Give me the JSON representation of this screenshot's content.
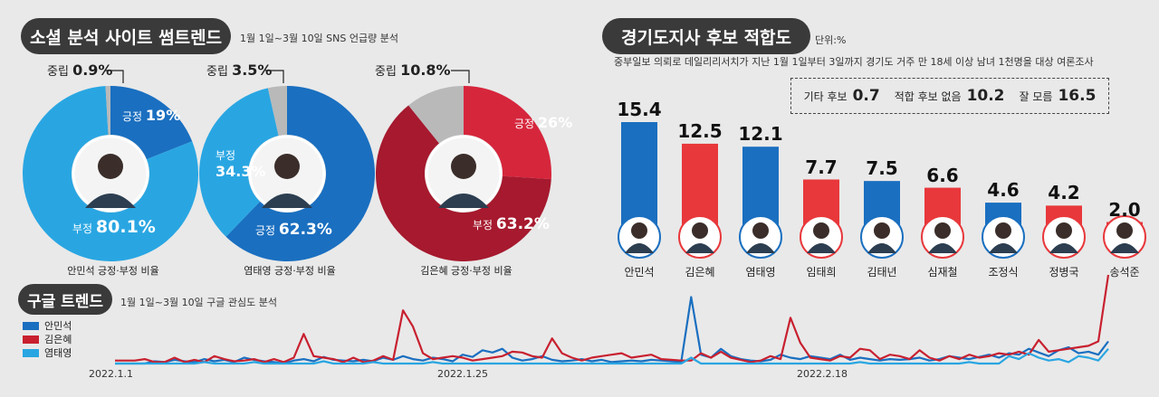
{
  "social": {
    "title": "소셜 분석 사이트 썸트렌드",
    "subtitle": "1월 1일~3월 10일 SNS 언급량 분석"
  },
  "gyeonggi": {
    "title": "경기도지사 후보 적합도",
    "unit": "단위:%",
    "source": "중부일보 의뢰로 데일리리서치가 지난 1월 1일부터 3일까지 경기도 거주 만 18세 이상 남녀 1천명을 대상 여론조사",
    "other_label": "기타 후보",
    "other_value": "0.7",
    "none_label": "적합 후보 없음",
    "none_value": "10.2",
    "dunno_label": "잘 모름",
    "dunno_value": "16.5"
  },
  "google": {
    "title": "구글 트렌드",
    "subtitle": "1월 1일~3월 10일 구글 관심도 분석"
  },
  "colors": {
    "blue": "#1a6fc0",
    "lightblue": "#29a6e2",
    "red": "#e8383b",
    "darkred": "#a6192e",
    "crimson": "#d6263c",
    "gray": "#b9b9b9"
  },
  "chart_data": [
    {
      "type": "pie",
      "title": "안민석 긍정·부정 비율",
      "slices": [
        {
          "name": "긍정",
          "value": 19,
          "label": "19%",
          "color": "#1a6fc0"
        },
        {
          "name": "부정",
          "value": 80.1,
          "label": "80.1%",
          "color": "#29a6e2"
        },
        {
          "name": "중립",
          "value": 0.9,
          "label": "0.9%",
          "color": "#b9b9b9"
        }
      ]
    },
    {
      "type": "pie",
      "title": "염태영 긍정·부정 비율",
      "slices": [
        {
          "name": "긍정",
          "value": 62.3,
          "label": "62.3%",
          "color": "#1a6fc0"
        },
        {
          "name": "부정",
          "value": 34.3,
          "label": "34.3%",
          "color": "#29a6e2"
        },
        {
          "name": "중립",
          "value": 3.5,
          "label": "3.5%",
          "color": "#b9b9b9"
        }
      ]
    },
    {
      "type": "pie",
      "title": "김은혜 긍정·부정 비율",
      "slices": [
        {
          "name": "긍정",
          "value": 26,
          "label": "26%",
          "color": "#d6263c"
        },
        {
          "name": "부정",
          "value": 63.2,
          "label": "63.2%",
          "color": "#a6192e"
        },
        {
          "name": "중립",
          "value": 10.8,
          "label": "10.8%",
          "color": "#b9b9b9"
        }
      ]
    },
    {
      "type": "bar",
      "categories": [
        "안민석",
        "김은혜",
        "염태영",
        "임태희",
        "김태년",
        "심재철",
        "조정식",
        "정병국",
        "송석준"
      ],
      "values": [
        15.4,
        12.5,
        12.1,
        7.7,
        7.5,
        6.6,
        4.6,
        4.2,
        2.0
      ],
      "labels": [
        "15.4",
        "12.5",
        "12.1",
        "7.7",
        "7.5",
        "6.6",
        "4.6",
        "4.2",
        "2.0"
      ],
      "colors": [
        "#1a6fc0",
        "#e8383b",
        "#1a6fc0",
        "#e8383b",
        "#1a6fc0",
        "#e8383b",
        "#1a6fc0",
        "#e8383b",
        "#e8383b"
      ]
    },
    {
      "type": "line",
      "x_ticks": [
        "2022.1.1",
        "2022.1.25",
        "2022.2.18"
      ],
      "series": [
        {
          "name": "안민석",
          "color": "#1a6fc0",
          "values": [
            0,
            0,
            0,
            0,
            3,
            2,
            5,
            3,
            2,
            6,
            3,
            5,
            2,
            8,
            5,
            3,
            2,
            0,
            4,
            6,
            3,
            9,
            5,
            4,
            3,
            5,
            3,
            8,
            5,
            10,
            6,
            4,
            8,
            6,
            3,
            12,
            9,
            18,
            15,
            20,
            8,
            4,
            6,
            10,
            5,
            3,
            4,
            6,
            3,
            5,
            2,
            3,
            4,
            3,
            5,
            4,
            3,
            2,
            90,
            12,
            8,
            20,
            10,
            6,
            4,
            3,
            5,
            12,
            8,
            6,
            10,
            8,
            6,
            12,
            5,
            8,
            6,
            4,
            6,
            5,
            6,
            8,
            4,
            6,
            10,
            8,
            6,
            9,
            12,
            8,
            14,
            12,
            20,
            15,
            10,
            18,
            22,
            14,
            16,
            12,
            30
          ]
        },
        {
          "name": "김은혜",
          "color": "#c8202f",
          "values": [
            4,
            4,
            4,
            6,
            2,
            2,
            8,
            2,
            5,
            2,
            10,
            6,
            3,
            4,
            6,
            2,
            6,
            2,
            8,
            40,
            10,
            8,
            6,
            2,
            8,
            2,
            4,
            10,
            5,
            72,
            50,
            14,
            6,
            8,
            10,
            8,
            4,
            6,
            8,
            10,
            16,
            15,
            10,
            8,
            34,
            14,
            8,
            4,
            8,
            10,
            12,
            14,
            8,
            10,
            12,
            6,
            5,
            4,
            4,
            14,
            8,
            16,
            8,
            5,
            2,
            4,
            10,
            6,
            62,
            28,
            8,
            6,
            4,
            10,
            8,
            20,
            18,
            6,
            12,
            10,
            6,
            18,
            8,
            4,
            10,
            6,
            12,
            8,
            10,
            14,
            12,
            16,
            12,
            32,
            16,
            18,
            20,
            22,
            24,
            30,
            120
          ]
        },
        {
          "name": "염태영",
          "color": "#29a6e2",
          "values": [
            0,
            0,
            0,
            0,
            0,
            0,
            0,
            0,
            0,
            2,
            0,
            0,
            0,
            0,
            2,
            0,
            0,
            0,
            0,
            0,
            0,
            3,
            0,
            0,
            0,
            0,
            2,
            0,
            0,
            0,
            0,
            0,
            2,
            0,
            0,
            0,
            0,
            0,
            0,
            0,
            0,
            0,
            0,
            0,
            0,
            0,
            0,
            0,
            0,
            0,
            0,
            0,
            0,
            0,
            0,
            0,
            0,
            0,
            8,
            0,
            0,
            0,
            0,
            0,
            0,
            0,
            0,
            0,
            0,
            0,
            0,
            0,
            0,
            0,
            0,
            2,
            0,
            0,
            0,
            0,
            0,
            0,
            0,
            0,
            0,
            0,
            2,
            0,
            0,
            0,
            10,
            6,
            14,
            8,
            4,
            6,
            2,
            10,
            8,
            4,
            20
          ]
        }
      ]
    }
  ]
}
